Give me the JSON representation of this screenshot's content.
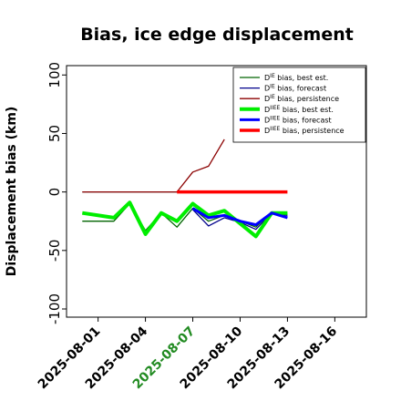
{
  "chart_data": {
    "type": "line",
    "title": "Bias, ice edge displacement",
    "xlabel": "",
    "ylabel": "Displacement bias (km)",
    "x_ticks": [
      "2025-08-01",
      "2025-08-04",
      "2025-08-07",
      "2025-08-10",
      "2025-08-13",
      "2025-08-16"
    ],
    "x_tick_colors": [
      "#000000",
      "#000000",
      "#228b22",
      "#000000",
      "#000000",
      "#000000"
    ],
    "xlim": [
      "2025-07-30",
      "2025-08-18"
    ],
    "ylim": [
      -107,
      108
    ],
    "y_ticks": [
      100,
      50,
      0,
      -50,
      -100
    ],
    "grid": false,
    "legend_position": "top-right",
    "series": [
      {
        "name": "D^IE bias, best est.",
        "label_sup": "IE",
        "label_rest": " bias, best est.",
        "color": "#006400",
        "width": 1.3,
        "x": [
          "2025-07-31",
          "2025-08-02",
          "2025-08-03",
          "2025-08-04",
          "2025-08-05",
          "2025-08-06",
          "2025-08-07",
          "2025-08-08",
          "2025-08-09",
          "2025-08-10",
          "2025-08-11",
          "2025-08-12",
          "2025-08-13"
        ],
        "y": [
          -25,
          -25,
          -10,
          -33,
          -18,
          -30,
          -14,
          -25,
          -20,
          -25,
          -30,
          -17,
          -19
        ]
      },
      {
        "name": "D^IE bias, forecast",
        "label_sup": "IE",
        "label_rest": " bias, forecast",
        "color": "#00008b",
        "width": 1.3,
        "x": [
          "2025-08-07",
          "2025-08-08",
          "2025-08-09",
          "2025-08-10",
          "2025-08-11",
          "2025-08-12",
          "2025-08-13"
        ],
        "y": [
          -15,
          -29,
          -22,
          -26,
          -32,
          -18,
          -20
        ]
      },
      {
        "name": "D^IE bias, persistence",
        "label_sup": "IE",
        "label_rest": " bias, persistence",
        "color": "#8b0000",
        "width": 1.3,
        "x": [
          "2025-07-31",
          "2025-08-06",
          "2025-08-07",
          "2025-08-08",
          "2025-08-09"
        ],
        "y": [
          0,
          0,
          17,
          22,
          45
        ]
      },
      {
        "name": "D^IIEE bias, best est.",
        "label_sup": "IIEE",
        "label_rest": " bias, best est.",
        "color": "#00ee00",
        "width": 4,
        "x": [
          "2025-07-31",
          "2025-08-02",
          "2025-08-03",
          "2025-08-04",
          "2025-08-05",
          "2025-08-06",
          "2025-08-07",
          "2025-08-08",
          "2025-08-09",
          "2025-08-10",
          "2025-08-11",
          "2025-08-12",
          "2025-08-13"
        ],
        "y": [
          -18,
          -22,
          -9,
          -36,
          -18,
          -25,
          -10,
          -20,
          -16,
          -27,
          -38,
          -18,
          -18
        ]
      },
      {
        "name": "D^IIEE bias, forecast",
        "label_sup": "IIEE",
        "label_rest": " bias, forecast",
        "color": "#0000ff",
        "width": 3,
        "x": [
          "2025-08-07",
          "2025-08-08",
          "2025-08-09",
          "2025-08-10",
          "2025-08-11",
          "2025-08-12",
          "2025-08-13"
        ],
        "y": [
          -14,
          -22,
          -20,
          -25,
          -28,
          -18,
          -22
        ]
      },
      {
        "name": "D^IIEE bias, persistence",
        "label_sup": "IIEE",
        "label_rest": " bias, persistence",
        "color": "#ff0000",
        "width": 3.5,
        "x": [
          "2025-08-06",
          "2025-08-13"
        ],
        "y": [
          0,
          0
        ]
      }
    ],
    "reference_line": {
      "y": 0,
      "x": [
        "2025-07-31",
        "2025-08-06"
      ],
      "color": "#555555"
    }
  }
}
